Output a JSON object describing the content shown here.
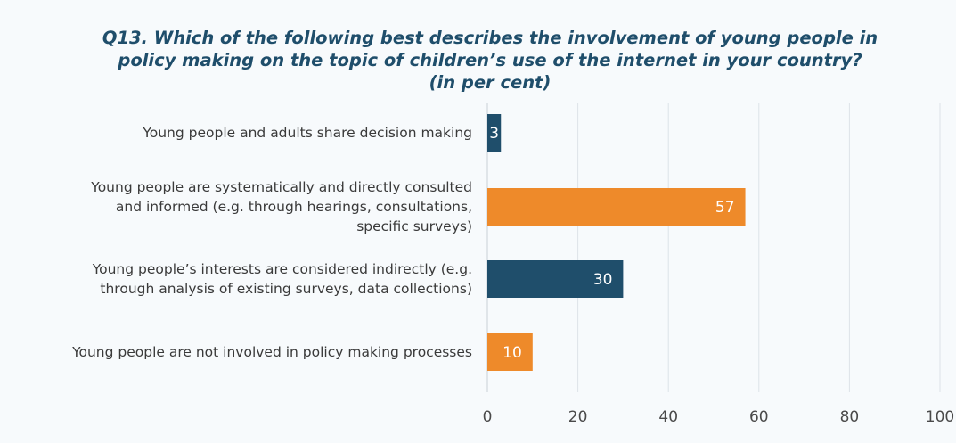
{
  "chart_data": {
    "type": "bar",
    "orientation": "horizontal",
    "title_lines": [
      "Q13. Which of the following best describes the involvement of young people in",
      "policy making on the topic of children’s use of the internet in your country?",
      "(in per cent)"
    ],
    "categories": [
      "Young people and adults share decision making",
      "Young people are systematically and directly consulted and informed (e.g. through hearings, consultations, specific surveys)",
      "Young people’s interests are considered indirectly (e.g. through analysis of existing surveys, data collections)",
      "Young people are not involved in policy making processes"
    ],
    "category_lines": [
      [
        "Young people and adults share decision making"
      ],
      [
        "Young people are systematically and directly consulted",
        "and informed (e.g. through hearings, consultations,",
        "specific surveys)"
      ],
      [
        "Young people’s interests are considered indirectly (e.g.",
        "through analysis of existing surveys, data collections)"
      ],
      [
        "Young people are not involved in policy making processes"
      ]
    ],
    "values": [
      3,
      57,
      30,
      10
    ],
    "data_labels": [
      "3",
      "57",
      "30",
      "10"
    ],
    "bar_colors": [
      "#1f4e6b",
      "#ee8a2a",
      "#1f4e6b",
      "#ee8a2a"
    ],
    "xlim": [
      0,
      100
    ],
    "xticks": [
      0,
      20,
      40,
      60,
      80,
      100
    ],
    "xlabel": "",
    "ylabel": "",
    "grid": "vertical",
    "legend": "none"
  }
}
